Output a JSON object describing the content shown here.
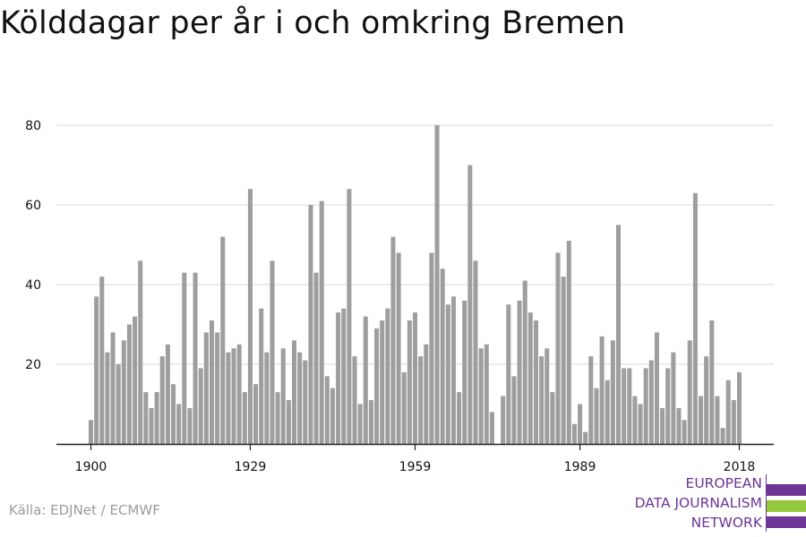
{
  "title": "Kölddagar per år i och omkring Bremen",
  "source": "Källa: EDJNet / ECMWF",
  "logo": {
    "lines": [
      "EUROPEAN",
      "DATA JOURNALISM",
      "NETWORK"
    ],
    "colors": {
      "purple": "#6c3596",
      "green": "#94c83d"
    }
  },
  "colors": {
    "bar": "#9e9e9e",
    "grid": "#d9d9d9",
    "axis": "#222222",
    "text": "#111111"
  },
  "chart_data": {
    "type": "bar",
    "title": "Kölddagar per år i och omkring Bremen",
    "xlabel": "",
    "ylabel": "",
    "ylim": [
      0,
      80
    ],
    "yticks": [
      20,
      40,
      60,
      80
    ],
    "xticks": [
      1900,
      1929,
      1959,
      1989,
      2018
    ],
    "grid": true,
    "series": [
      {
        "x": [
          1900,
          1901,
          1902,
          1903,
          1904,
          1905,
          1906,
          1907,
          1908,
          1909,
          1910,
          1911,
          1912,
          1913,
          1914,
          1915,
          1916,
          1917,
          1918,
          1919,
          1920,
          1921,
          1922,
          1923,
          1924,
          1925,
          1926,
          1927,
          1928,
          1929,
          1930,
          1931,
          1932,
          1933,
          1934,
          1935,
          1936,
          1937,
          1938,
          1939,
          1940,
          1941,
          1942,
          1943,
          1944,
          1945,
          1946,
          1947,
          1948,
          1949,
          1950,
          1951,
          1952,
          1953,
          1954,
          1955,
          1956,
          1957,
          1958,
          1959,
          1960,
          1961,
          1962,
          1963,
          1964,
          1965,
          1966,
          1967,
          1968,
          1969,
          1970,
          1971,
          1972,
          1973,
          1974,
          1975,
          1976,
          1977,
          1978,
          1979,
          1980,
          1981,
          1982,
          1983,
          1984,
          1985,
          1986,
          1987,
          1988,
          1989,
          1990,
          1991,
          1992,
          1993,
          1994,
          1995,
          1996,
          1997,
          1998,
          1999,
          2000,
          2001,
          2002,
          2003,
          2004,
          2005,
          2006,
          2007,
          2008,
          2009,
          2010,
          2011,
          2012,
          2013,
          2014,
          2015,
          2016,
          2017,
          2018
        ],
        "values": [
          6,
          37,
          42,
          23,
          28,
          20,
          26,
          30,
          32,
          46,
          13,
          9,
          13,
          22,
          25,
          15,
          10,
          43,
          9,
          43,
          19,
          28,
          31,
          28,
          52,
          23,
          24,
          25,
          13,
          64,
          15,
          34,
          23,
          46,
          13,
          24,
          11,
          26,
          23,
          21,
          60,
          43,
          61,
          17,
          14,
          33,
          34,
          64,
          22,
          10,
          32,
          11,
          29,
          31,
          34,
          52,
          48,
          18,
          31,
          33,
          22,
          25,
          48,
          80,
          44,
          35,
          37,
          13,
          36,
          70,
          46,
          24,
          25,
          8,
          0,
          12,
          35,
          17,
          36,
          41,
          33,
          31,
          22,
          24,
          13,
          48,
          42,
          51,
          5,
          10,
          3,
          22,
          14,
          27,
          16,
          26,
          55,
          19,
          19,
          12,
          10,
          19,
          21,
          28,
          9,
          19,
          23,
          9,
          6,
          26,
          63,
          12,
          22,
          31,
          12,
          4,
          16,
          11,
          18
        ]
      }
    ]
  }
}
